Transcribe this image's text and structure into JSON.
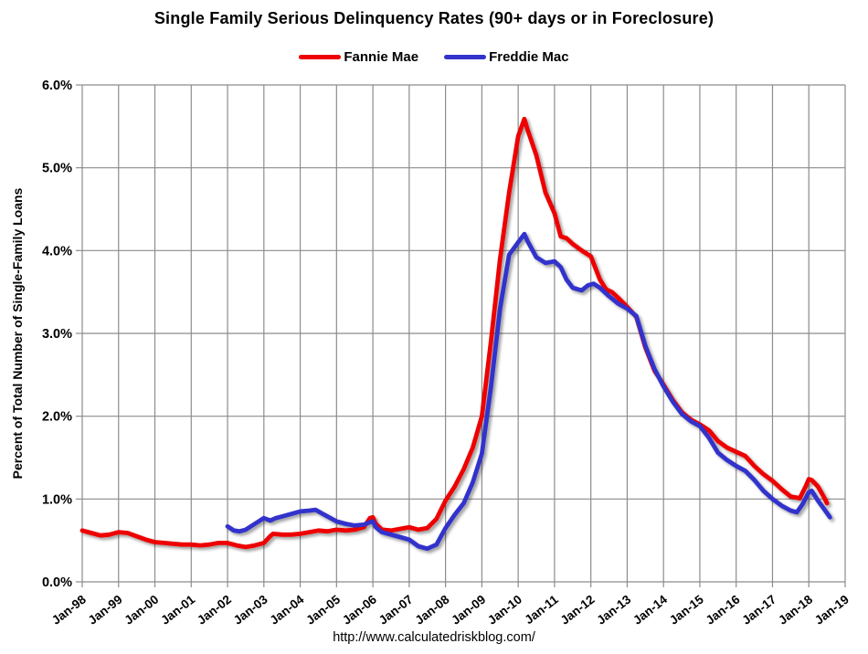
{
  "page": {
    "source_url": "http://www.calculatedriskblog.com/"
  },
  "chart_data": {
    "type": "line",
    "title": "Single Family Serious Delinquency Rates (90+ days or in Foreclosure)",
    "xlabel": "",
    "ylabel": "Percent of Total Number of Single-Family Loans",
    "x_range": [
      1998,
      2019
    ],
    "y_range": [
      0,
      6
    ],
    "grid": true,
    "legend_position": "top",
    "grid_color": "#8c8c8c",
    "x_tick_labels": [
      "Jan-98",
      "Jan-99",
      "Jan-00",
      "Jan-01",
      "Jan-02",
      "Jan-03",
      "Jan-04",
      "Jan-05",
      "Jan-06",
      "Jan-07",
      "Jan-08",
      "Jan-09",
      "Jan-10",
      "Jan-11",
      "Jan-12",
      "Jan-13",
      "Jan-14",
      "Jan-15",
      "Jan-16",
      "Jan-17",
      "Jan-18",
      "Jan-19"
    ],
    "y_tick_labels": [
      "0.0%",
      "1.0%",
      "2.0%",
      "3.0%",
      "4.0%",
      "5.0%",
      "6.0%"
    ],
    "series": [
      {
        "name": "Fannie Mae",
        "color": "#ee0000",
        "x": [
          1998.0,
          1998.25,
          1998.5,
          1998.75,
          1999.0,
          1999.25,
          1999.5,
          1999.75,
          2000.0,
          2000.25,
          2000.5,
          2000.75,
          2001.0,
          2001.25,
          2001.5,
          2001.75,
          2002.0,
          2002.25,
          2002.5,
          2002.75,
          2003.0,
          2003.17,
          2003.25,
          2003.5,
          2003.75,
          2004.0,
          2004.25,
          2004.5,
          2004.75,
          2005.0,
          2005.25,
          2005.5,
          2005.75,
          2005.92,
          2006.0,
          2006.08,
          2006.25,
          2006.5,
          2006.75,
          2007.0,
          2007.25,
          2007.5,
          2007.75,
          2008.0,
          2008.25,
          2008.5,
          2008.75,
          2009.0,
          2009.25,
          2009.5,
          2009.75,
          2010.0,
          2010.17,
          2010.25,
          2010.5,
          2010.75,
          2011.0,
          2011.17,
          2011.33,
          2011.5,
          2011.75,
          2012.0,
          2012.25,
          2012.42,
          2012.58,
          2012.75,
          2013.0,
          2013.25,
          2013.5,
          2013.75,
          2014.0,
          2014.25,
          2014.5,
          2014.75,
          2015.0,
          2015.25,
          2015.5,
          2015.75,
          2016.0,
          2016.25,
          2016.5,
          2016.75,
          2017.0,
          2017.25,
          2017.5,
          2017.75,
          2017.92,
          2018.0,
          2018.08,
          2018.25,
          2018.42,
          2018.5
        ],
        "values": [
          0.62,
          0.59,
          0.56,
          0.57,
          0.6,
          0.59,
          0.55,
          0.51,
          0.48,
          0.47,
          0.46,
          0.45,
          0.45,
          0.44,
          0.45,
          0.47,
          0.47,
          0.44,
          0.42,
          0.44,
          0.47,
          0.55,
          0.58,
          0.57,
          0.57,
          0.58,
          0.6,
          0.62,
          0.61,
          0.63,
          0.62,
          0.63,
          0.66,
          0.77,
          0.78,
          0.7,
          0.63,
          0.62,
          0.64,
          0.66,
          0.63,
          0.65,
          0.76,
          0.98,
          1.15,
          1.36,
          1.62,
          2.0,
          2.9,
          3.9,
          4.7,
          5.38,
          5.59,
          5.47,
          5.15,
          4.7,
          4.45,
          4.17,
          4.15,
          4.08,
          4.0,
          3.93,
          3.65,
          3.53,
          3.5,
          3.43,
          3.32,
          3.2,
          2.83,
          2.55,
          2.38,
          2.2,
          2.05,
          1.96,
          1.9,
          1.83,
          1.7,
          1.62,
          1.57,
          1.52,
          1.4,
          1.3,
          1.22,
          1.12,
          1.03,
          1.01,
          1.16,
          1.24,
          1.23,
          1.15,
          1.02,
          0.95
        ]
      },
      {
        "name": "Freddie Mac",
        "color": "#3333cc",
        "x": [
          2002.0,
          2002.17,
          2002.33,
          2002.5,
          2002.75,
          2003.0,
          2003.17,
          2003.33,
          2003.5,
          2003.75,
          2004.0,
          2004.25,
          2004.42,
          2004.58,
          2004.75,
          2005.0,
          2005.25,
          2005.5,
          2005.75,
          2005.92,
          2006.0,
          2006.08,
          2006.25,
          2006.5,
          2006.75,
          2007.0,
          2007.25,
          2007.5,
          2007.75,
          2008.0,
          2008.25,
          2008.5,
          2008.75,
          2009.0,
          2009.25,
          2009.5,
          2009.75,
          2010.0,
          2010.17,
          2010.25,
          2010.5,
          2010.75,
          2011.0,
          2011.17,
          2011.33,
          2011.5,
          2011.75,
          2011.92,
          2012.08,
          2012.25,
          2012.5,
          2012.75,
          2013.0,
          2013.25,
          2013.5,
          2013.75,
          2014.0,
          2014.25,
          2014.5,
          2014.75,
          2015.0,
          2015.25,
          2015.5,
          2015.75,
          2016.0,
          2016.25,
          2016.5,
          2016.75,
          2017.0,
          2017.25,
          2017.5,
          2017.67,
          2017.83,
          2018.0,
          2018.08,
          2018.25,
          2018.42,
          2018.58
        ],
        "values": [
          0.67,
          0.62,
          0.61,
          0.63,
          0.7,
          0.77,
          0.74,
          0.77,
          0.79,
          0.82,
          0.85,
          0.86,
          0.87,
          0.83,
          0.79,
          0.73,
          0.7,
          0.68,
          0.69,
          0.72,
          0.73,
          0.66,
          0.6,
          0.57,
          0.54,
          0.51,
          0.43,
          0.4,
          0.45,
          0.65,
          0.81,
          0.95,
          1.2,
          1.55,
          2.35,
          3.3,
          3.95,
          4.1,
          4.2,
          4.12,
          3.92,
          3.85,
          3.87,
          3.8,
          3.65,
          3.55,
          3.52,
          3.58,
          3.6,
          3.55,
          3.45,
          3.36,
          3.3,
          3.21,
          2.85,
          2.57,
          2.36,
          2.18,
          2.03,
          1.94,
          1.88,
          1.74,
          1.56,
          1.47,
          1.4,
          1.34,
          1.23,
          1.1,
          1.0,
          0.92,
          0.86,
          0.84,
          0.94,
          1.08,
          1.1,
          0.98,
          0.88,
          0.78
        ]
      }
    ]
  }
}
